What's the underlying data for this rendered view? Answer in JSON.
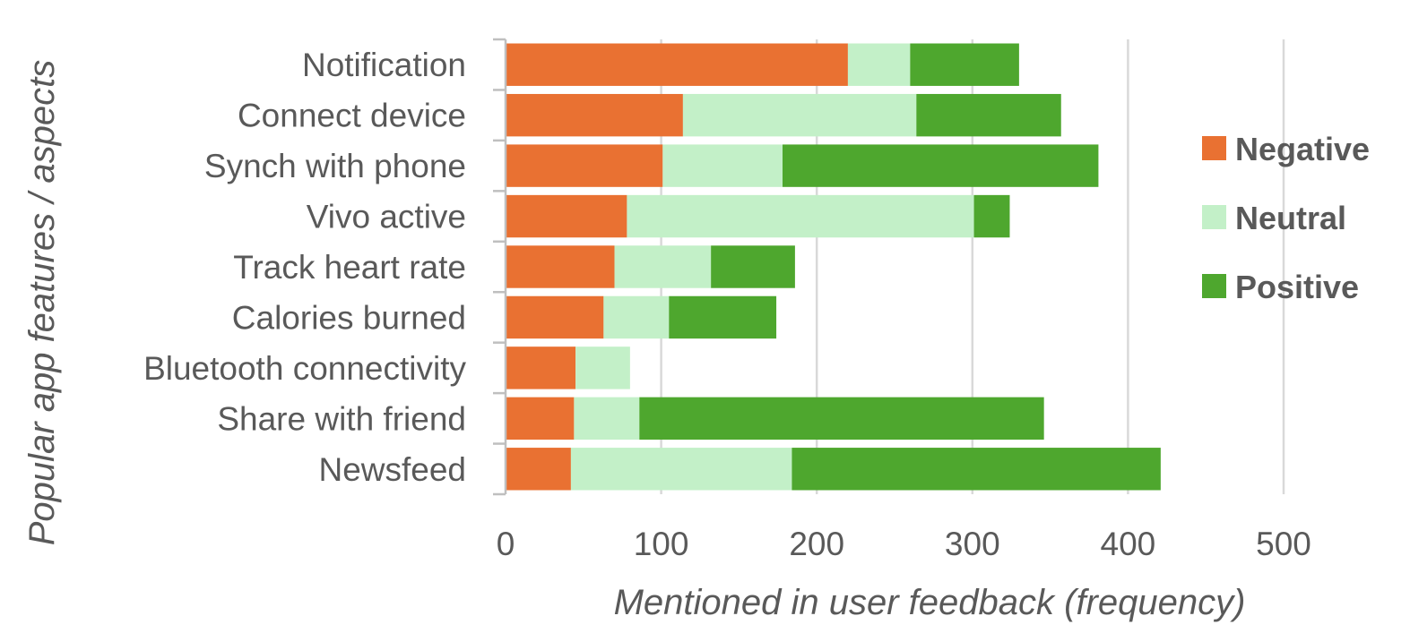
{
  "chart_data": {
    "type": "bar",
    "orientation": "horizontal",
    "stacked": true,
    "categories": [
      "Notification",
      "Connect device",
      "Synch with phone",
      "Vivo active",
      "Track heart rate",
      "Calories burned",
      "Bluetooth connectivity",
      "Share with friend",
      "Newsfeed"
    ],
    "series": [
      {
        "name": "Negative",
        "color": "#E97132",
        "values": [
          220,
          114,
          101,
          78,
          70,
          63,
          45,
          44,
          42
        ]
      },
      {
        "name": "Neutral",
        "color": "#C3F0C8",
        "values": [
          40,
          150,
          77,
          223,
          62,
          42,
          35,
          42,
          142
        ]
      },
      {
        "name": "Positive",
        "color": "#4EA72E",
        "values": [
          70,
          93,
          203,
          23,
          54,
          69,
          0,
          260,
          237
        ]
      }
    ],
    "xlabel": "Mentioned in user feedback (frequency)",
    "ylabel": "Popular app features / aspects",
    "xlim": [
      0,
      500
    ],
    "xticks": [
      0,
      100,
      200,
      300,
      400,
      500
    ],
    "grid": "vertical",
    "legend": "right"
  }
}
